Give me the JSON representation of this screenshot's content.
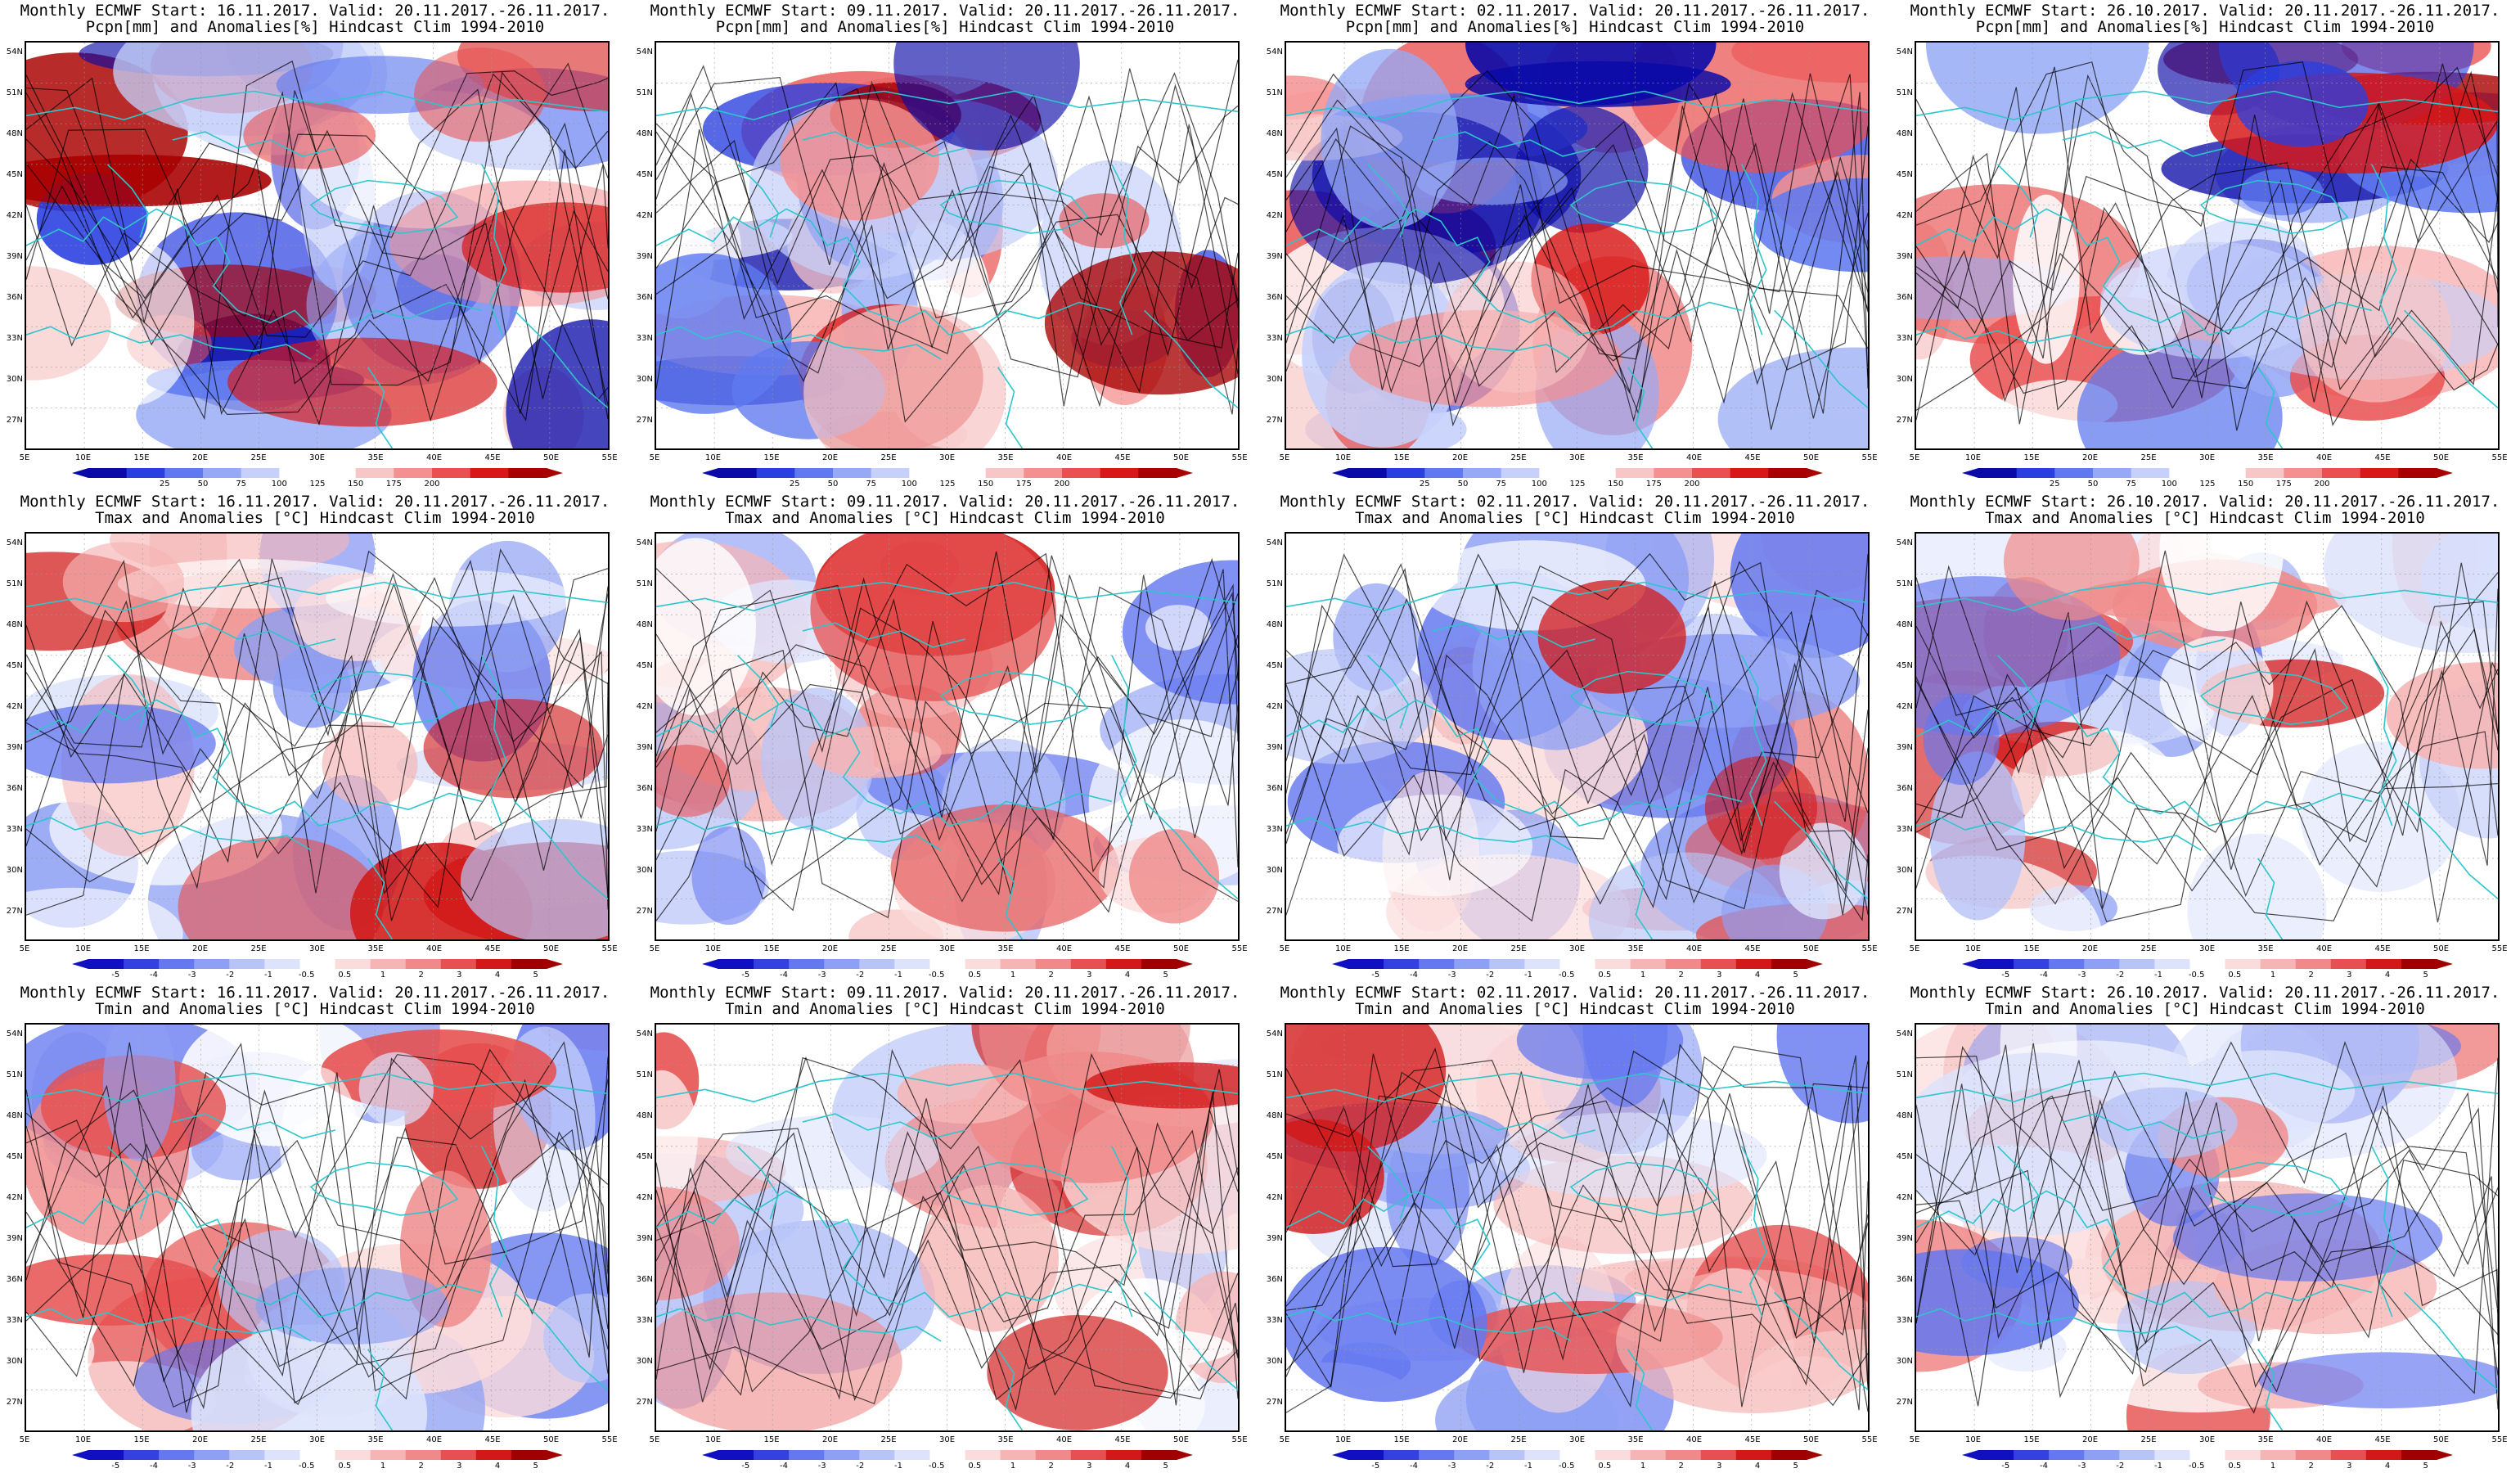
{
  "colors": {
    "coast": "#2cc6cc",
    "contour": "#000000",
    "precip_scale": [
      "#0a0aa8",
      "#2a3fe0",
      "#5f7af0",
      "#95a9f6",
      "#c6d0fa",
      "#ffffff",
      "#ffffff",
      "#f8c6c6",
      "#f49090",
      "#ea5050",
      "#d81818",
      "#a80000"
    ],
    "temp_scale": [
      "#1010c0",
      "#3540e0",
      "#6478f0",
      "#8ea0f4",
      "#b8c4f8",
      "#dde3fb",
      "#ffffff",
      "#fbdcdc",
      "#f6b5b5",
      "#f08a8a",
      "#e65050",
      "#d21818",
      "#a00000"
    ]
  },
  "y_labels": [
    "54N",
    "51N",
    "48N",
    "45N",
    "42N",
    "39N",
    "36N",
    "33N",
    "30N",
    "27N"
  ],
  "x_labels": [
    "5E",
    "10E",
    "15E",
    "20E",
    "25E",
    "30E",
    "35E",
    "40E",
    "45E",
    "50E",
    "55E"
  ],
  "precip_colorbar_labels": [
    "25",
    "50",
    "75",
    "100",
    "125",
    "150",
    "175",
    "200"
  ],
  "temp_colorbar_labels": [
    "-5",
    "-4",
    "-3",
    "-2",
    "-1",
    "-0.5",
    "0.5",
    "1",
    "2",
    "3",
    "4",
    "5"
  ],
  "panels": [
    {
      "title1": "Monthly ECMWF Start: 16.11.2017. Valid: 20.11.2017.-26.11.2017.",
      "title2": "Pcpn[mm] and Anomalies[%] Hindcast Clim 1994-2010",
      "scale": "precip"
    },
    {
      "title1": "Monthly ECMWF Start: 09.11.2017. Valid: 20.11.2017.-26.11.2017.",
      "title2": "Pcpn[mm] and Anomalies[%] Hindcast Clim 1994-2010",
      "scale": "precip"
    },
    {
      "title1": "Monthly ECMWF Start: 02.11.2017. Valid: 20.11.2017.-26.11.2017.",
      "title2": "Pcpn[mm] and Anomalies[%] Hindcast Clim 1994-2010",
      "scale": "precip"
    },
    {
      "title1": "Monthly ECMWF Start: 26.10.2017. Valid: 20.11.2017.-26.11.2017.",
      "title2": "Pcpn[mm] and Anomalies[%] Hindcast Clim 1994-2010",
      "scale": "precip"
    },
    {
      "title1": "Monthly ECMWF Start: 16.11.2017. Valid: 20.11.2017.-26.11.2017.",
      "title2": "Tmax and Anomalies [°C] Hindcast Clim 1994-2010",
      "scale": "temp"
    },
    {
      "title1": "Monthly ECMWF Start: 09.11.2017. Valid: 20.11.2017.-26.11.2017.",
      "title2": "Tmax and Anomalies [°C] Hindcast Clim 1994-2010",
      "scale": "temp"
    },
    {
      "title1": "Monthly ECMWF Start: 02.11.2017. Valid: 20.11.2017.-26.11.2017.",
      "title2": "Tmax and Anomalies [°C] Hindcast Clim 1994-2010",
      "scale": "temp"
    },
    {
      "title1": "Monthly ECMWF Start: 26.10.2017. Valid: 20.11.2017.-26.11.2017.",
      "title2": "Tmax and Anomalies [°C] Hindcast Clim 1994-2010",
      "scale": "temp"
    },
    {
      "title1": "Monthly ECMWF Start: 16.11.2017. Valid: 20.11.2017.-26.11.2017.",
      "title2": "Tmin and Anomalies [°C] Hindcast Clim 1994-2010",
      "scale": "temp"
    },
    {
      "title1": "Monthly ECMWF Start: 09.11.2017. Valid: 20.11.2017.-26.11.2017.",
      "title2": "Tmin and Anomalies [°C] Hindcast Clim 1994-2010",
      "scale": "temp"
    },
    {
      "title1": "Monthly ECMWF Start: 02.11.2017. Valid: 20.11.2017.-26.11.2017.",
      "title2": "Tmin and Anomalies [°C] Hindcast Clim 1994-2010",
      "scale": "temp"
    },
    {
      "title1": "Monthly ECMWF Start: 26.10.2017. Valid: 20.11.2017.-26.11.2017.",
      "title2": "Tmin and Anomalies [°C] Hindcast Clim 1994-2010",
      "scale": "temp"
    }
  ]
}
